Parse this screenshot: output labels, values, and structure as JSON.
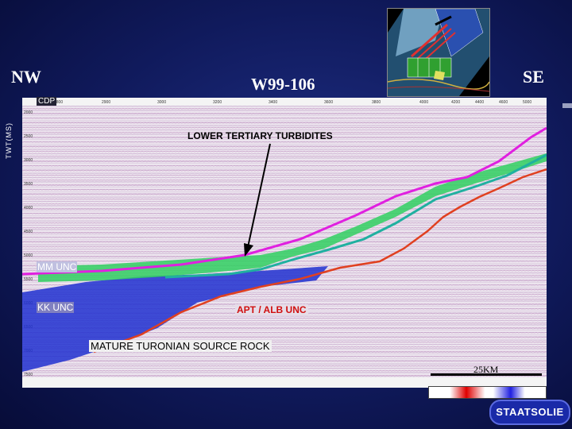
{
  "title": "W99-106",
  "left_direction": "NW",
  "right_direction": "SE",
  "cdp_label": "CDP",
  "twt_label": "TWT(MS)",
  "annotations": {
    "turbidites": "LOWER TERTIARY TURBIDITES",
    "mm_unc": "MM UNC",
    "kk_unc": "KK UNC",
    "apt_alb_unc": "APT / ALB UNC",
    "source_rock": "MATURE TURONIAN SOURCE ROCK"
  },
  "scale_label": "25KM",
  "logo_text": "STAATSOLIE",
  "colors": {
    "background": "#101a5c",
    "mm_unc_horizon": "#e020e0",
    "kk_unc_horizon": "#20b0a0",
    "apt_alb_horizon": "#e04020",
    "turbidites_fill": "#30d060",
    "source_rock_fill": "#2030d0"
  }
}
